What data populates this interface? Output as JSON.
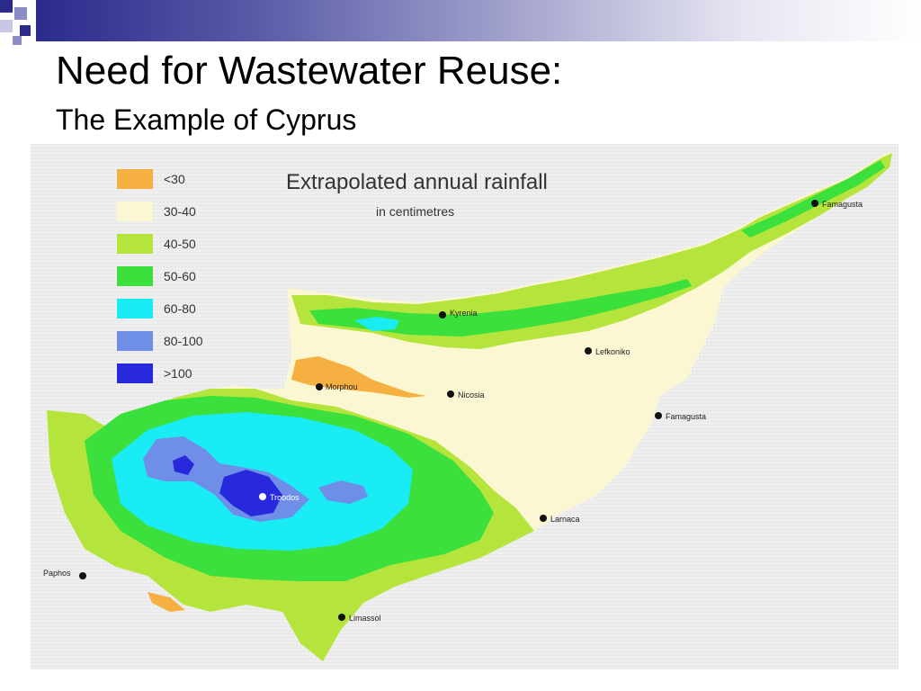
{
  "slide": {
    "title": "Need for Wastewater Reuse:",
    "subtitle": "The Example of Cyprus"
  },
  "map": {
    "title": "Extrapolated annual rainfall",
    "subtitle": "in centimetres",
    "legend": [
      {
        "label": "<30",
        "color": "#f5b041"
      },
      {
        "label": "30-40",
        "color": "#fbf7d2"
      },
      {
        "label": "40-50",
        "color": "#b5e43c"
      },
      {
        "label": "50-60",
        "color": "#3ce03c"
      },
      {
        "label": "60-80",
        "color": "#19ecf5"
      },
      {
        "label": "80-100",
        "color": "#6e8ee8"
      },
      {
        "label": ">100",
        "color": "#2828dc"
      }
    ],
    "cities": [
      {
        "name": "Famagusta",
        "label": "Famagusta"
      },
      {
        "name": "Kyrenia",
        "label": "Kyrenia"
      },
      {
        "name": "Morphou",
        "label": "Morphou"
      },
      {
        "name": "Nicosia",
        "label": "Nicosia"
      },
      {
        "name": "Lefkoniko",
        "label": "Lefkoniko"
      },
      {
        "name": "Famagusta-bay",
        "label": "Famagusta"
      },
      {
        "name": "Troodos",
        "label": "Troodos"
      },
      {
        "name": "Larnaca",
        "label": "Larnaca"
      },
      {
        "name": "Paphos",
        "label": "Paphos"
      },
      {
        "name": "Limassol",
        "label": "Limassol"
      }
    ]
  }
}
